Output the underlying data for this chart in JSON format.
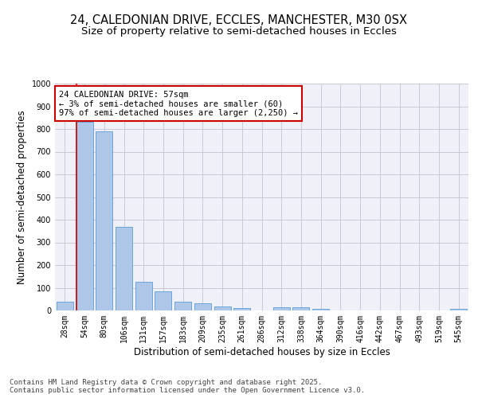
{
  "title_line1": "24, CALEDONIAN DRIVE, ECCLES, MANCHESTER, M30 0SX",
  "title_line2": "Size of property relative to semi-detached houses in Eccles",
  "xlabel": "Distribution of semi-detached houses by size in Eccles",
  "ylabel": "Number of semi-detached properties",
  "categories": [
    "28sqm",
    "54sqm",
    "80sqm",
    "106sqm",
    "131sqm",
    "157sqm",
    "183sqm",
    "209sqm",
    "235sqm",
    "261sqm",
    "286sqm",
    "312sqm",
    "338sqm",
    "364sqm",
    "390sqm",
    "416sqm",
    "442sqm",
    "467sqm",
    "493sqm",
    "519sqm",
    "545sqm"
  ],
  "values": [
    38,
    830,
    790,
    370,
    127,
    83,
    37,
    33,
    17,
    12,
    0,
    13,
    13,
    8,
    0,
    0,
    0,
    0,
    0,
    0,
    7
  ],
  "bar_color": "#aec6e8",
  "bar_edge_color": "#5a9fd4",
  "red_line_color": "#cc0000",
  "annotation_title": "24 CALEDONIAN DRIVE: 57sqm",
  "annotation_line1": "← 3% of semi-detached houses are smaller (60)",
  "annotation_line2": "97% of semi-detached houses are larger (2,250) →",
  "annotation_box_color": "#ffffff",
  "annotation_box_edge_color": "#cc0000",
  "grid_color": "#c8c8d8",
  "background_color": "#f0f0f8",
  "ylim": [
    0,
    1000
  ],
  "yticks": [
    0,
    100,
    200,
    300,
    400,
    500,
    600,
    700,
    800,
    900,
    1000
  ],
  "footer_line1": "Contains HM Land Registry data © Crown copyright and database right 2025.",
  "footer_line2": "Contains public sector information licensed under the Open Government Licence v3.0.",
  "title_fontsize": 10.5,
  "subtitle_fontsize": 9.5,
  "axis_label_fontsize": 8.5,
  "tick_fontsize": 7,
  "annotation_fontsize": 7.5,
  "footer_fontsize": 6.5
}
